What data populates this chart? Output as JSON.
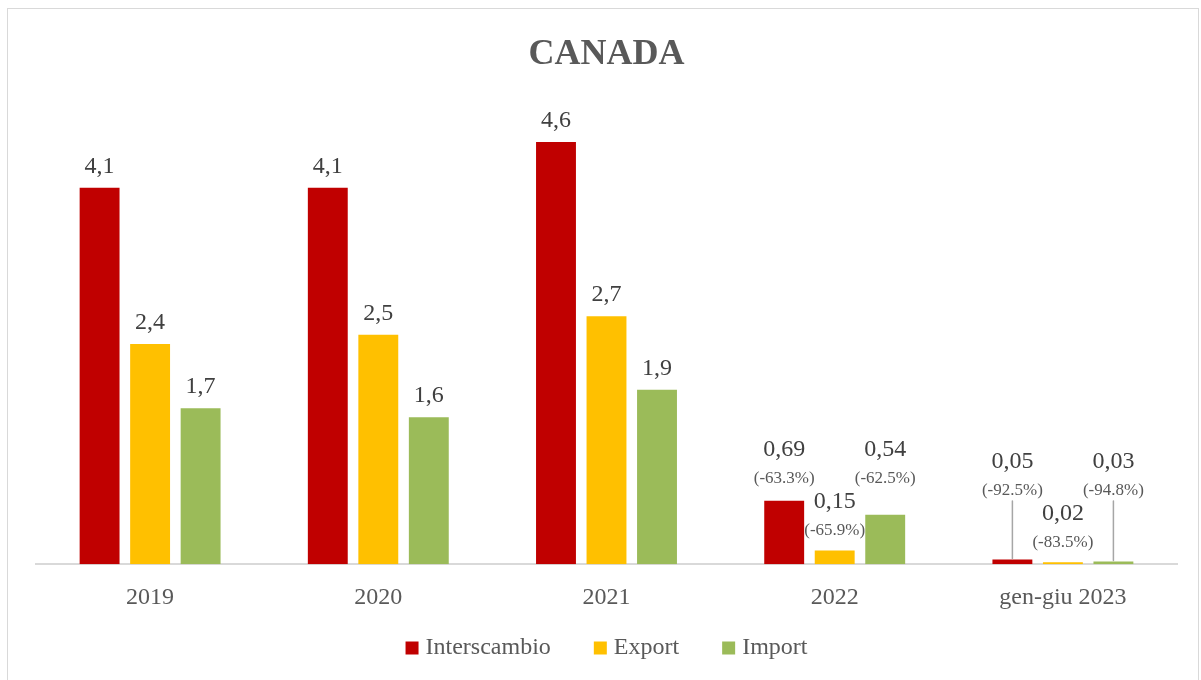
{
  "chart_data": {
    "type": "bar",
    "title": "CANADA",
    "categories": [
      "2019",
      "2020",
      "2021",
      "2022",
      "gen-giu 2023"
    ],
    "series": [
      {
        "name": "Interscambio",
        "color": "#c00000",
        "values": [
          4.1,
          4.1,
          4.6,
          0.69,
          0.05
        ],
        "value_labels": [
          "4,1",
          "4,1",
          "4,6",
          "0,69\n(-63.3%)",
          "0,05\n(-92.5%)"
        ]
      },
      {
        "name": "Export",
        "color": "#ffc000",
        "values": [
          2.4,
          2.5,
          2.7,
          0.15,
          0.02
        ],
        "value_labels": [
          "2,4",
          "2,5",
          "2,7",
          "0,15\n(-65.9%)",
          "0,02\n(-83.5%)"
        ]
      },
      {
        "name": "Import",
        "color": "#9bbb59",
        "values": [
          1.7,
          1.6,
          1.9,
          0.54,
          0.03
        ],
        "value_labels": [
          "1,7",
          "1,6",
          "1,9",
          "0,54\n(-62.5%)",
          "0,03\n(-94.8%)"
        ]
      }
    ],
    "legend": "bottom",
    "grid": false
  }
}
